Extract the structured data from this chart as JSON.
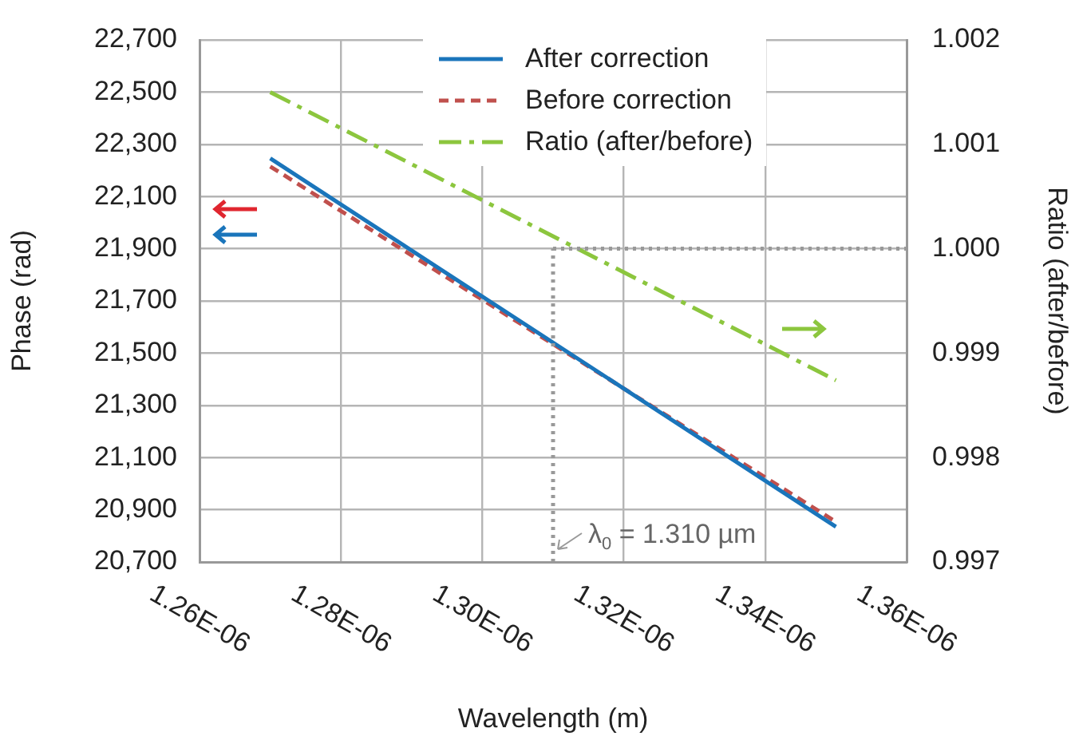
{
  "chart_data": {
    "type": "line",
    "xlabel": "Wavelength (m)",
    "ylabel": "Phase (rad)",
    "y2label": "Ratio (after/before)",
    "x": [
      1.27e-06,
      1.35e-06
    ],
    "series": [
      {
        "name": "After correction",
        "color": "#1a75bb",
        "values": [
          22246,
          20835
        ],
        "line_style": "solid"
      },
      {
        "name": "Before correction",
        "color": "#c0504d",
        "values": [
          22215,
          20854
        ],
        "line_style": "dashed"
      },
      {
        "name": "Ratio (after/before)",
        "color": "#8cc63e",
        "values": [
          1.0015,
          0.99874
        ],
        "line_style": "dashdot",
        "axis": "y2"
      }
    ],
    "xlim": [
      1.26e-06,
      1.36e-06
    ],
    "xticks": [
      {
        "value": 1.26e-06,
        "label": "1.26E-06"
      },
      {
        "value": 1.28e-06,
        "label": "1.28E-06"
      },
      {
        "value": 1.3e-06,
        "label": "1.30E-06"
      },
      {
        "value": 1.32e-06,
        "label": "1.32E-06"
      },
      {
        "value": 1.34e-06,
        "label": "1.34E-06"
      },
      {
        "value": 1.36e-06,
        "label": "1.36E-06"
      }
    ],
    "ylim": [
      20700,
      22700
    ],
    "yticks": [
      {
        "value": 20700,
        "label": "20,700"
      },
      {
        "value": 20900,
        "label": "20,900"
      },
      {
        "value": 21100,
        "label": "21,100"
      },
      {
        "value": 21300,
        "label": "21,300"
      },
      {
        "value": 21500,
        "label": "21,500"
      },
      {
        "value": 21700,
        "label": "21,700"
      },
      {
        "value": 21900,
        "label": "21,900"
      },
      {
        "value": 22100,
        "label": "22,100"
      },
      {
        "value": 22300,
        "label": "22,300"
      },
      {
        "value": 22500,
        "label": "22,500"
      },
      {
        "value": 22700,
        "label": "22,700"
      }
    ],
    "y2lim": [
      0.997,
      1.002
    ],
    "y2ticks": [
      {
        "value": 0.997,
        "label": "0.997"
      },
      {
        "value": 0.998,
        "label": "0.998"
      },
      {
        "value": 0.999,
        "label": "0.999"
      },
      {
        "value": 1,
        "label": "1.000"
      },
      {
        "value": 1.001,
        "label": "1.001"
      },
      {
        "value": 1.002,
        "label": "1.002"
      }
    ],
    "ref_lines": [
      {
        "axis": "x",
        "value": 1.31e-06,
        "color": "#999999",
        "line_style": "dotted"
      },
      {
        "axis": "y2",
        "value": 1,
        "color": "#999999",
        "line_style": "dotted"
      }
    ],
    "annotations": [
      "λ$_{0}$ = 1.310 µm"
    ],
    "grid": true,
    "legend": "top",
    "marker": "none"
  }
}
